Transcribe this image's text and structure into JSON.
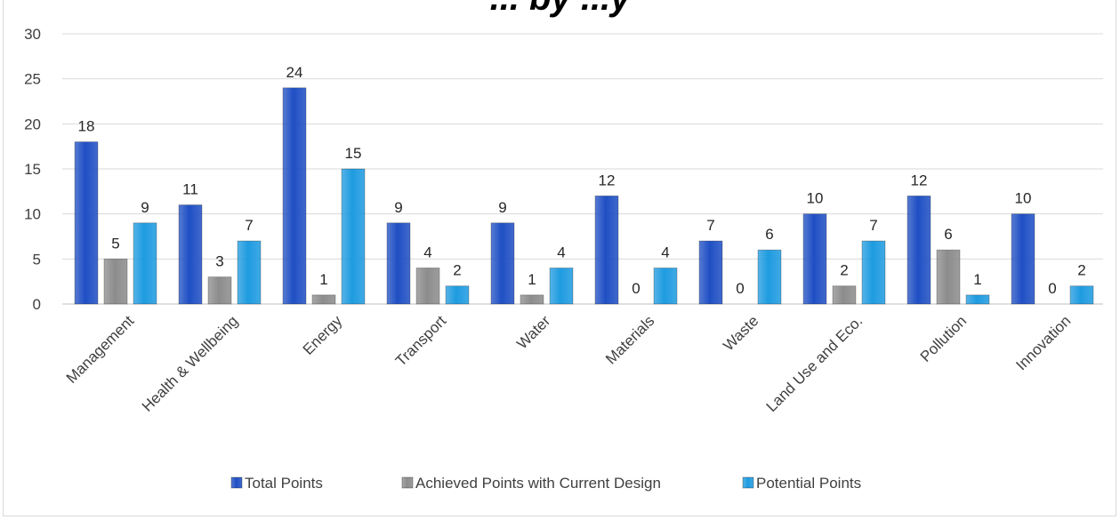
{
  "chart_data": {
    "type": "bar",
    "title": "... by ...y",
    "categories": [
      "Management",
      "Health & Wellbeing",
      "Energy",
      "Transport",
      "Water",
      "Materials",
      "Waste",
      "Land Use and Eco.",
      "Pollution",
      "Innovation"
    ],
    "series": [
      {
        "name": "Total Points",
        "values": [
          18,
          11,
          24,
          9,
          9,
          12,
          7,
          10,
          12,
          10
        ],
        "color": "#1f4fc4"
      },
      {
        "name": "Achieved Points with Current Design",
        "values": [
          5,
          3,
          1,
          4,
          1,
          0,
          0,
          2,
          6,
          0
        ],
        "color": "#8c8c8c"
      },
      {
        "name": "Potential Points",
        "values": [
          9,
          7,
          15,
          2,
          4,
          4,
          6,
          7,
          1,
          2
        ],
        "color": "#1e9be0"
      }
    ],
    "ylim": [
      0,
      30
    ],
    "yticks": [
      0,
      5,
      10,
      15,
      20,
      25,
      30
    ],
    "grid": true,
    "legend_position": "bottom",
    "xlabel": "",
    "ylabel": ""
  }
}
